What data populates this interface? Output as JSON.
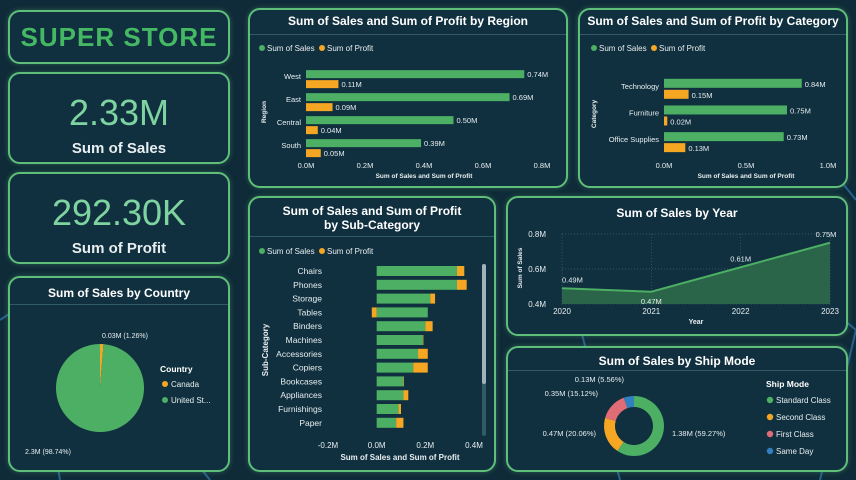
{
  "brand": "SUPER STORE",
  "kpis": [
    {
      "value": "2.33M",
      "label": "Sum of Sales"
    },
    {
      "value": "292.30K",
      "label": "Sum of Profit"
    }
  ],
  "colors": {
    "sales": "#4caf63",
    "profit": "#f5a623",
    "canada": "#f5a623",
    "us": "#4caf63",
    "standard": "#4caf63",
    "second": "#f5a623",
    "first": "#e06c75",
    "sameday": "#2f7fc1"
  },
  "legend": {
    "sales": "Sum of Sales",
    "profit": "Sum of Profit"
  },
  "chart_data": [
    {
      "id": "region",
      "type": "bar",
      "title": "Sum of Sales and Sum of Profit by Region",
      "ylabel": "Region",
      "xlabel": "Sum of Sales and Sum of Profit",
      "categories": [
        "West",
        "East",
        "Central",
        "South"
      ],
      "series": [
        {
          "name": "Sum of Sales",
          "values": [
            0.74,
            0.69,
            0.5,
            0.39
          ],
          "labels": [
            "0.74M",
            "0.69M",
            "0.50M",
            "0.39M"
          ]
        },
        {
          "name": "Sum of Profit",
          "values": [
            0.11,
            0.09,
            0.04,
            0.05
          ],
          "labels": [
            "0.11M",
            "0.09M",
            "0.04M",
            "0.05M"
          ]
        }
      ],
      "xlim": [
        0,
        0.8
      ],
      "xticks": [
        "0.0M",
        "0.2M",
        "0.4M",
        "0.6M",
        "0.8M"
      ]
    },
    {
      "id": "category",
      "type": "bar",
      "title": "Sum of Sales and Sum of Profit by Category",
      "ylabel": "Category",
      "xlabel": "Sum of Sales and Sum of Profit",
      "categories": [
        "Technology",
        "Furniture",
        "Office Supplies"
      ],
      "series": [
        {
          "name": "Sum of Sales",
          "values": [
            0.84,
            0.75,
            0.73
          ],
          "labels": [
            "0.84M",
            "0.75M",
            "0.73M"
          ]
        },
        {
          "name": "Sum of Profit",
          "values": [
            0.15,
            0.02,
            0.13
          ],
          "labels": [
            "0.15M",
            "0.02M",
            "0.13M"
          ]
        }
      ],
      "xlim": [
        0,
        1.0
      ],
      "xticks": [
        "0.0M",
        "0.5M",
        "1.0M"
      ]
    },
    {
      "id": "subcategory",
      "type": "bar",
      "stacked": true,
      "title": "Sum of Sales and Sum of Profit by Sub-Category",
      "ylabel": "Sub-Category",
      "xlabel": "Sum of Sales and Sum of Profit",
      "categories": [
        "Chairs",
        "Phones",
        "Storage",
        "Tables",
        "Binders",
        "Machines",
        "Accessories",
        "Copiers",
        "Bookcases",
        "Appliances",
        "Furnishings",
        "Paper"
      ],
      "series": [
        {
          "name": "Sum of Sales",
          "values": [
            0.33,
            0.33,
            0.22,
            0.21,
            0.2,
            0.19,
            0.17,
            0.15,
            0.11,
            0.11,
            0.09,
            0.08
          ]
        },
        {
          "name": "Sum of Profit",
          "values": [
            0.03,
            0.04,
            0.02,
            -0.02,
            0.03,
            0.0,
            0.04,
            0.06,
            0.0,
            0.02,
            0.01,
            0.03
          ]
        }
      ],
      "xlim": [
        -0.2,
        0.4
      ],
      "xticks": [
        "-0.2M",
        "0.0M",
        "0.2M",
        "0.4M"
      ]
    },
    {
      "id": "year",
      "type": "area",
      "title": "Sum of Sales by Year",
      "ylabel": "Sum of Sales",
      "xlabel": "Year",
      "x": [
        "2020",
        "2021",
        "2022",
        "2023"
      ],
      "values": [
        0.49,
        0.47,
        0.61,
        0.75
      ],
      "labels": [
        "0.49M",
        "0.47M",
        "0.61M",
        "0.75M"
      ],
      "ylim": [
        0.4,
        0.8
      ],
      "yticks": [
        "0.4M",
        "0.6M",
        "0.8M"
      ]
    },
    {
      "id": "country",
      "type": "pie",
      "title": "Sum of Sales by Country",
      "legend_title": "Country",
      "categories": [
        "Canada",
        "United St..."
      ],
      "values": [
        1.26,
        98.74
      ],
      "labels": [
        "0.03M (1.26%)",
        "2.3M (98.74%)"
      ]
    },
    {
      "id": "shipmode",
      "type": "pie",
      "donut": true,
      "title": "Sum of Sales by Ship Mode",
      "legend_title": "Ship Mode",
      "categories": [
        "Standard Class",
        "Second Class",
        "First Class",
        "Same Day"
      ],
      "values": [
        59.27,
        20.06,
        15.12,
        5.56
      ],
      "labels": [
        "1.38M (59.27%)",
        "0.47M (20.06%)",
        "0.35M (15.12%)",
        "0.13M (5.56%)"
      ]
    }
  ]
}
